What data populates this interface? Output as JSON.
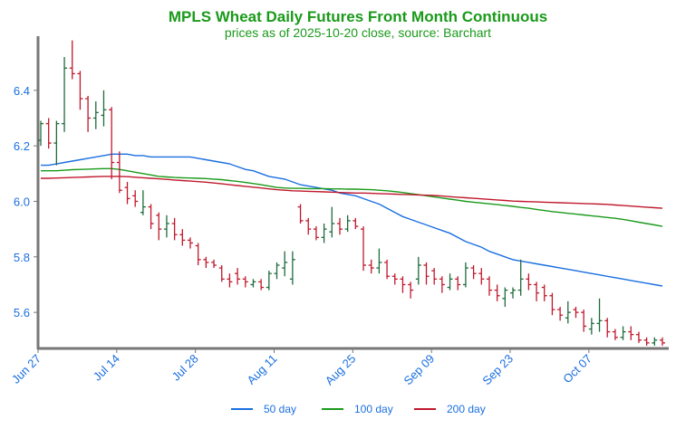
{
  "chart_data": {
    "type": "ohlc",
    "title": "MPLS Wheat Daily Futures Front Month Continuous",
    "subtitle": "prices as of 2025-10-20 close, source: Barchart",
    "categories": [
      "Jun 27",
      null,
      null,
      null,
      null,
      null,
      null,
      null,
      null,
      null,
      "Jul 14",
      null,
      null,
      null,
      null,
      null,
      null,
      null,
      null,
      null,
      "Jul 28",
      null,
      null,
      null,
      null,
      null,
      null,
      null,
      null,
      null,
      "Aug 11",
      null,
      null,
      null,
      null,
      null,
      null,
      null,
      null,
      null,
      "Aug 25",
      null,
      null,
      null,
      null,
      null,
      null,
      null,
      null,
      null,
      "Sep 09",
      null,
      null,
      null,
      null,
      null,
      null,
      null,
      null,
      null,
      "Sep 23",
      null,
      null,
      null,
      null,
      null,
      null,
      null,
      null,
      null,
      "Oct 07",
      null,
      null,
      null,
      null,
      null,
      null,
      null,
      null,
      null
    ],
    "open": [
      6.22,
      6.28,
      6.21,
      6.28,
      6.48,
      6.46,
      6.37,
      6.3,
      6.31,
      6.33,
      6.14,
      6.05,
      6.02,
      5.96,
      5.98,
      5.95,
      5.9,
      5.92,
      5.88,
      5.86,
      5.84,
      5.79,
      5.78,
      5.76,
      5.72,
      5.74,
      5.72,
      5.7,
      5.71,
      5.69,
      5.74,
      5.76,
      5.72,
      5.98,
      5.93,
      5.9,
      5.87,
      5.89,
      5.92,
      5.9,
      5.93,
      5.9,
      5.77,
      5.76,
      5.78,
      5.73,
      5.72,
      5.7,
      5.72,
      5.77,
      5.75,
      5.72,
      5.69,
      5.72,
      5.7,
      5.76,
      5.74,
      5.72,
      5.68,
      5.65,
      5.67,
      5.68,
      5.72,
      5.7,
      5.69,
      5.66,
      5.61,
      5.58,
      5.61,
      5.6,
      5.54,
      5.56,
      5.57,
      5.53,
      5.51,
      5.53,
      5.52,
      5.5,
      5.49,
      5.5
    ],
    "high": [
      6.29,
      6.3,
      6.29,
      6.52,
      6.58,
      6.47,
      6.38,
      6.36,
      6.4,
      6.34,
      6.18,
      6.07,
      6.04,
      6.04,
      5.99,
      5.96,
      5.95,
      5.94,
      5.9,
      5.87,
      5.85,
      5.8,
      5.79,
      5.77,
      5.74,
      5.76,
      5.73,
      5.72,
      5.72,
      5.75,
      5.78,
      5.82,
      5.82,
      5.99,
      5.94,
      5.91,
      5.92,
      5.98,
      5.94,
      5.95,
      5.94,
      5.91,
      5.79,
      5.83,
      5.79,
      5.74,
      5.73,
      5.71,
      5.8,
      5.78,
      5.76,
      5.73,
      5.74,
      5.73,
      5.78,
      5.77,
      5.76,
      5.73,
      5.7,
      5.69,
      5.69,
      5.79,
      5.74,
      5.71,
      5.7,
      5.67,
      5.62,
      5.64,
      5.62,
      5.61,
      5.58,
      5.65,
      5.58,
      5.54,
      5.55,
      5.55,
      5.53,
      5.51,
      5.51,
      5.51
    ],
    "low": [
      6.2,
      6.19,
      6.13,
      6.25,
      6.44,
      6.33,
      6.25,
      6.26,
      6.27,
      6.08,
      6.03,
      5.99,
      5.98,
      5.95,
      5.9,
      5.86,
      5.87,
      5.86,
      5.84,
      5.83,
      5.77,
      5.76,
      5.76,
      5.71,
      5.69,
      5.7,
      5.69,
      5.69,
      5.68,
      5.68,
      5.72,
      5.73,
      5.7,
      5.92,
      5.88,
      5.86,
      5.85,
      5.87,
      5.88,
      5.89,
      5.9,
      5.75,
      5.74,
      5.74,
      5.72,
      5.7,
      5.67,
      5.65,
      5.7,
      5.7,
      5.7,
      5.67,
      5.68,
      5.68,
      5.69,
      5.72,
      5.7,
      5.66,
      5.64,
      5.62,
      5.65,
      5.66,
      5.68,
      5.64,
      5.64,
      5.59,
      5.57,
      5.56,
      5.58,
      5.53,
      5.52,
      5.53,
      5.51,
      5.5,
      5.5,
      5.5,
      5.49,
      5.48,
      5.48,
      5.48
    ],
    "close": [
      6.28,
      6.21,
      6.28,
      6.48,
      6.46,
      6.37,
      6.3,
      6.32,
      6.33,
      6.14,
      6.04,
      6.01,
      6.0,
      5.98,
      5.92,
      5.9,
      5.92,
      5.88,
      5.86,
      5.85,
      5.79,
      5.78,
      5.77,
      5.72,
      5.71,
      5.72,
      5.71,
      5.71,
      5.69,
      5.74,
      5.77,
      5.78,
      5.79,
      5.93,
      5.9,
      5.87,
      5.9,
      5.92,
      5.9,
      5.93,
      5.91,
      5.77,
      5.76,
      5.78,
      5.73,
      5.72,
      5.7,
      5.68,
      5.77,
      5.73,
      5.72,
      5.7,
      5.72,
      5.7,
      5.76,
      5.74,
      5.72,
      5.68,
      5.66,
      5.68,
      5.68,
      5.72,
      5.7,
      5.67,
      5.66,
      5.61,
      5.59,
      5.6,
      5.6,
      5.55,
      5.56,
      5.57,
      5.53,
      5.51,
      5.53,
      5.52,
      5.5,
      5.49,
      5.5,
      5.49
    ],
    "up_color": "#1e6b3c",
    "down_color": "#c0182c",
    "series": [
      {
        "name": "50 day",
        "color": "#1a6fe0",
        "values": [
          6.13,
          6.13,
          6.135,
          6.14,
          6.145,
          6.15,
          6.155,
          6.16,
          6.165,
          6.17,
          6.17,
          6.17,
          6.165,
          6.165,
          6.16,
          6.16,
          6.16,
          6.16,
          6.16,
          6.16,
          6.155,
          6.15,
          6.145,
          6.14,
          6.135,
          6.125,
          6.115,
          6.11,
          6.1,
          6.09,
          6.085,
          6.08,
          6.07,
          6.06,
          6.055,
          6.05,
          6.045,
          6.04,
          6.03,
          6.025,
          6.02,
          6.01,
          6.0,
          5.99,
          5.975,
          5.96,
          5.945,
          5.935,
          5.925,
          5.915,
          5.905,
          5.895,
          5.885,
          5.87,
          5.855,
          5.845,
          5.835,
          5.82,
          5.81,
          5.8,
          5.79,
          5.785,
          5.78,
          5.775,
          5.77,
          5.765,
          5.76,
          5.755,
          5.75,
          5.745,
          5.74,
          5.735,
          5.73,
          5.725,
          5.72,
          5.715,
          5.71,
          5.705,
          5.7,
          5.695
        ]
      },
      {
        "name": "100 day",
        "color": "#1a9a1a",
        "values": [
          6.11,
          6.11,
          6.11,
          6.112,
          6.114,
          6.115,
          6.116,
          6.117,
          6.118,
          6.118,
          6.115,
          6.11,
          6.105,
          6.1,
          6.095,
          6.09,
          6.088,
          6.086,
          6.085,
          6.084,
          6.083,
          6.082,
          6.08,
          6.078,
          6.075,
          6.072,
          6.068,
          6.064,
          6.06,
          6.055,
          6.05,
          6.048,
          6.047,
          6.047,
          6.046,
          6.046,
          6.046,
          6.045,
          6.045,
          6.044,
          6.044,
          6.043,
          6.042,
          6.04,
          6.038,
          6.035,
          6.032,
          6.028,
          6.024,
          6.02,
          6.016,
          6.012,
          6.008,
          6.004,
          6.0,
          5.997,
          5.994,
          5.991,
          5.988,
          5.985,
          5.982,
          5.978,
          5.975,
          5.971,
          5.967,
          5.963,
          5.96,
          5.957,
          5.954,
          5.951,
          5.948,
          5.945,
          5.942,
          5.939,
          5.935,
          5.93,
          5.925,
          5.92,
          5.915,
          5.91
        ]
      },
      {
        "name": "200 day",
        "color": "#c0182c",
        "values": [
          6.083,
          6.083,
          6.084,
          6.085,
          6.086,
          6.087,
          6.088,
          6.089,
          6.09,
          6.09,
          6.09,
          6.089,
          6.087,
          6.085,
          6.083,
          6.081,
          6.079,
          6.077,
          6.075,
          6.073,
          6.071,
          6.069,
          6.066,
          6.063,
          6.06,
          6.057,
          6.054,
          6.051,
          6.048,
          6.045,
          6.042,
          6.04,
          6.038,
          6.037,
          6.036,
          6.035,
          6.034,
          6.033,
          6.032,
          6.031,
          6.03,
          6.03,
          6.029,
          6.028,
          6.027,
          6.026,
          6.025,
          6.024,
          6.023,
          6.022,
          6.021,
          6.019,
          6.017,
          6.015,
          6.013,
          6.011,
          6.009,
          6.007,
          6.005,
          6.003,
          6.001,
          6.0,
          5.999,
          5.998,
          5.997,
          5.996,
          5.995,
          5.994,
          5.993,
          5.992,
          5.991,
          5.99,
          5.989,
          5.987,
          5.985,
          5.983,
          5.981,
          5.979,
          5.977,
          5.975
        ]
      }
    ],
    "ylim": [
      5.47,
      6.595
    ],
    "yticks": [
      5.6,
      5.8,
      {
        "value": 6,
        "label": "6.0"
      },
      6.2,
      6.4
    ],
    "grid": false
  }
}
